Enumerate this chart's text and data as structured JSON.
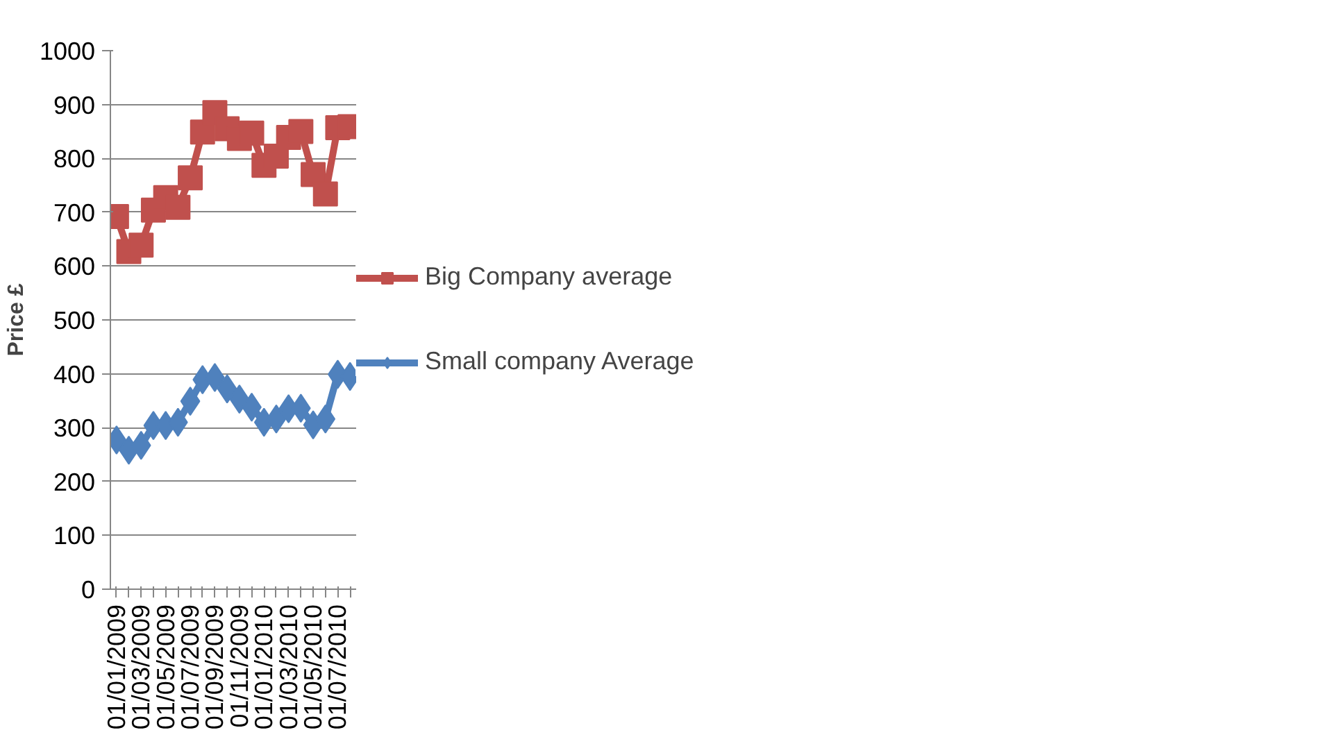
{
  "chart_data": {
    "type": "line",
    "ylabel": "Price £",
    "categories": [
      "01/01/2009",
      null,
      "01/03/2009",
      null,
      "01/05/2009",
      null,
      "01/07/2009",
      null,
      "01/09/2009",
      null,
      "01/11/2009",
      null,
      "01/01/2010",
      null,
      "01/03/2010",
      null,
      "01/05/2010",
      null,
      "01/07/2010",
      null
    ],
    "series": [
      {
        "name": "Big Company average",
        "color": "#c0504d",
        "marker": "square",
        "values": [
          692,
          627,
          639,
          704,
          727,
          709,
          764,
          849,
          885,
          855,
          837,
          847,
          787,
          804,
          839,
          850,
          770,
          734,
          857,
          859
        ]
      },
      {
        "name": "Small company Average",
        "color": "#4f81bd",
        "marker": "diamond",
        "values": [
          277,
          258,
          267,
          304,
          304,
          310,
          349,
          389,
          393,
          372,
          353,
          338,
          310,
          316,
          335,
          336,
          305,
          316,
          399,
          395
        ]
      }
    ],
    "ylim": [
      0,
      1000
    ],
    "yticks": [
      0,
      100,
      200,
      300,
      400,
      500,
      600,
      700,
      800,
      900,
      1000
    ],
    "grid": "y",
    "legend": "right"
  }
}
